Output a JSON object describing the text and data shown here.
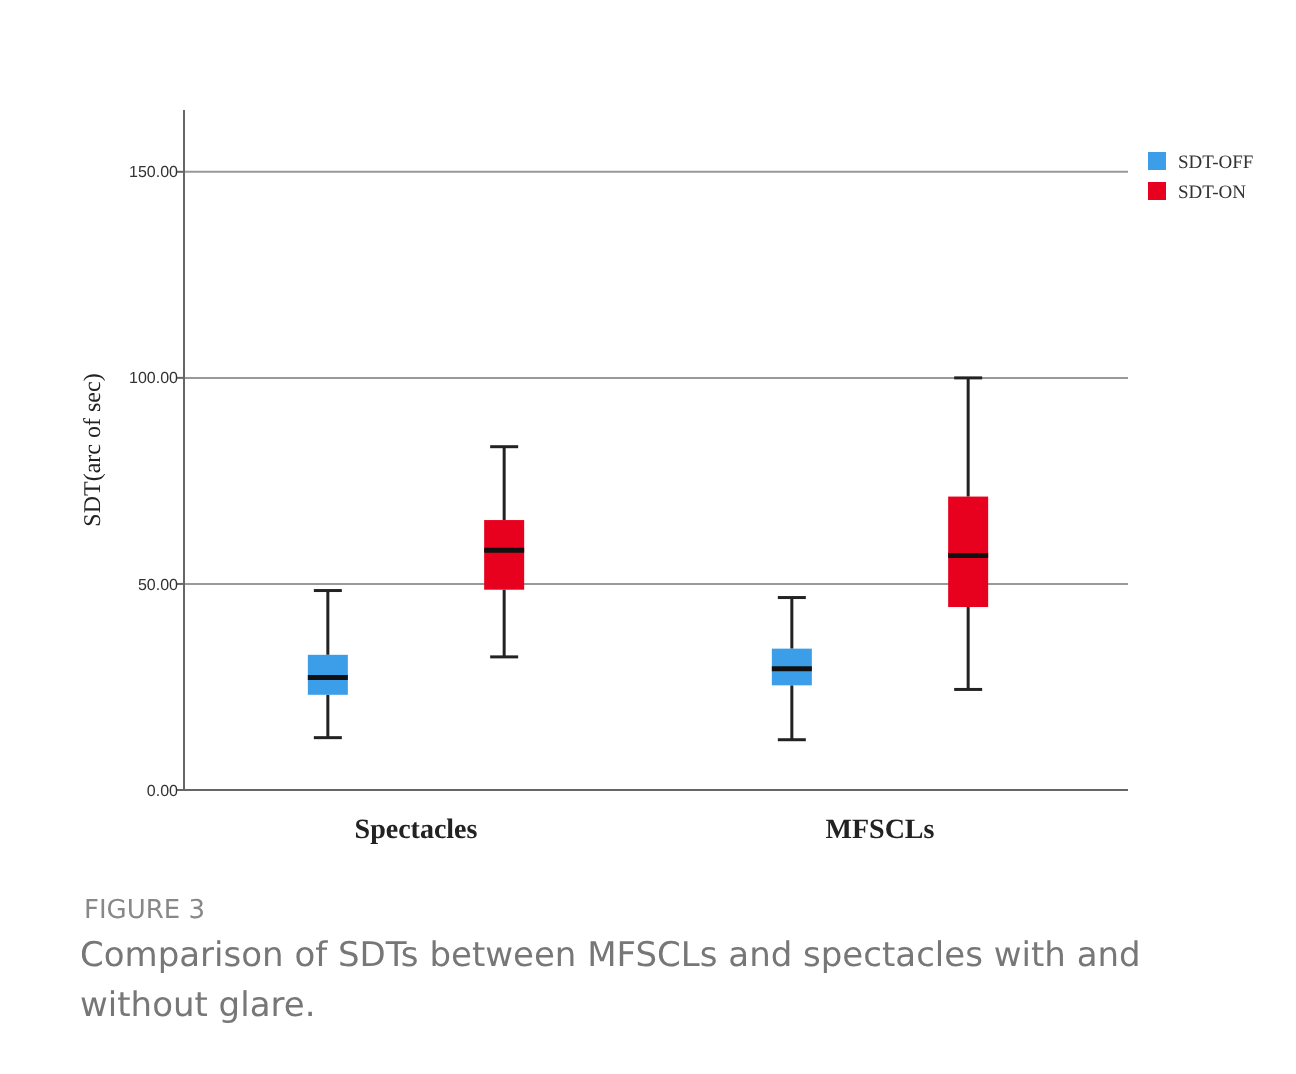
{
  "chart_data": {
    "type": "box",
    "ylabel": "SDT(arc of sec)",
    "categories": [
      "Spectacles",
      "MFSCLs"
    ],
    "ylim": [
      0,
      165
    ],
    "yticks": [
      {
        "value": 0,
        "label": "0.00"
      },
      {
        "value": 50,
        "label": "50.00"
      },
      {
        "value": 100,
        "label": "100.00"
      },
      {
        "value": 150,
        "label": "150.00"
      }
    ],
    "grid": "y",
    "legend": "top right",
    "series": [
      {
        "name": "SDT-OFF",
        "color": "#3c9ee8",
        "boxes": [
          {
            "low": 12.7,
            "q1": 23.1,
            "median": 27.3,
            "q3": 32.8,
            "high": 48.4
          },
          {
            "low": 12.2,
            "q1": 25.4,
            "median": 29.4,
            "q3": 34.3,
            "high": 46.7
          }
        ]
      },
      {
        "name": "SDT-ON",
        "color": "#e8001f",
        "boxes": [
          {
            "low": 32.3,
            "q1": 48.6,
            "median": 58.2,
            "q3": 65.5,
            "high": 83.3
          },
          {
            "low": 24.4,
            "q1": 44.4,
            "median": 56.9,
            "q3": 71.2,
            "high": 100
          }
        ]
      }
    ],
    "annotations": [
      "FIGURE 3",
      "Comparison of SDTs between MFSCLs and spectacles with and without glare."
    ]
  }
}
